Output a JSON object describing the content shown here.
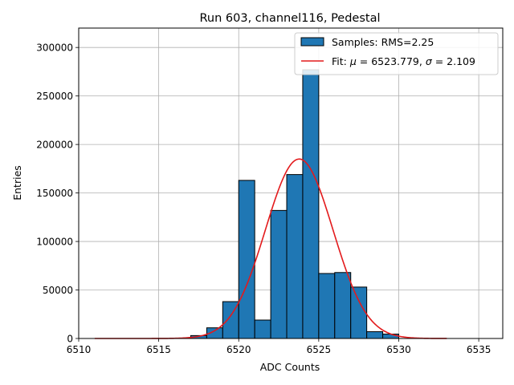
{
  "chart_data": {
    "type": "bar",
    "title": "Run 603, channel116, Pedestal",
    "xlabel": "ADC Counts",
    "ylabel": "Entries",
    "xlim": [
      6510,
      6536.5
    ],
    "ylim": [
      0,
      320000
    ],
    "xticks": [
      6510,
      6515,
      6520,
      6525,
      6530,
      6535
    ],
    "yticks": [
      0,
      50000,
      100000,
      150000,
      200000,
      250000,
      300000
    ],
    "grid": true,
    "legend_position": "top-right",
    "histogram": {
      "name": "Samples: RMS=2.25",
      "color": "#1f77b4",
      "edgecolor": "#000000",
      "bin_edges": [
        6517,
        6518,
        6519,
        6520,
        6521,
        6522,
        6523,
        6524,
        6525,
        6526,
        6527,
        6528,
        6529,
        6530
      ],
      "counts": [
        3000,
        11000,
        38000,
        163000,
        19000,
        132000,
        169000,
        277000,
        67000,
        68000,
        53000,
        7000,
        4500
      ]
    },
    "fit": {
      "name": "Fit: μ = 6523.779, σ = 2.109",
      "name_prefix": "Fit: ",
      "mu_symbol": "μ",
      "mu_text": " = 6523.779, ",
      "sigma_symbol": "σ",
      "sigma_text": " = 2.109",
      "color": "#e31a1c",
      "mu": 6523.779,
      "sigma": 2.109,
      "amplitude": 185000,
      "x_range": [
        6511,
        6533
      ]
    }
  }
}
